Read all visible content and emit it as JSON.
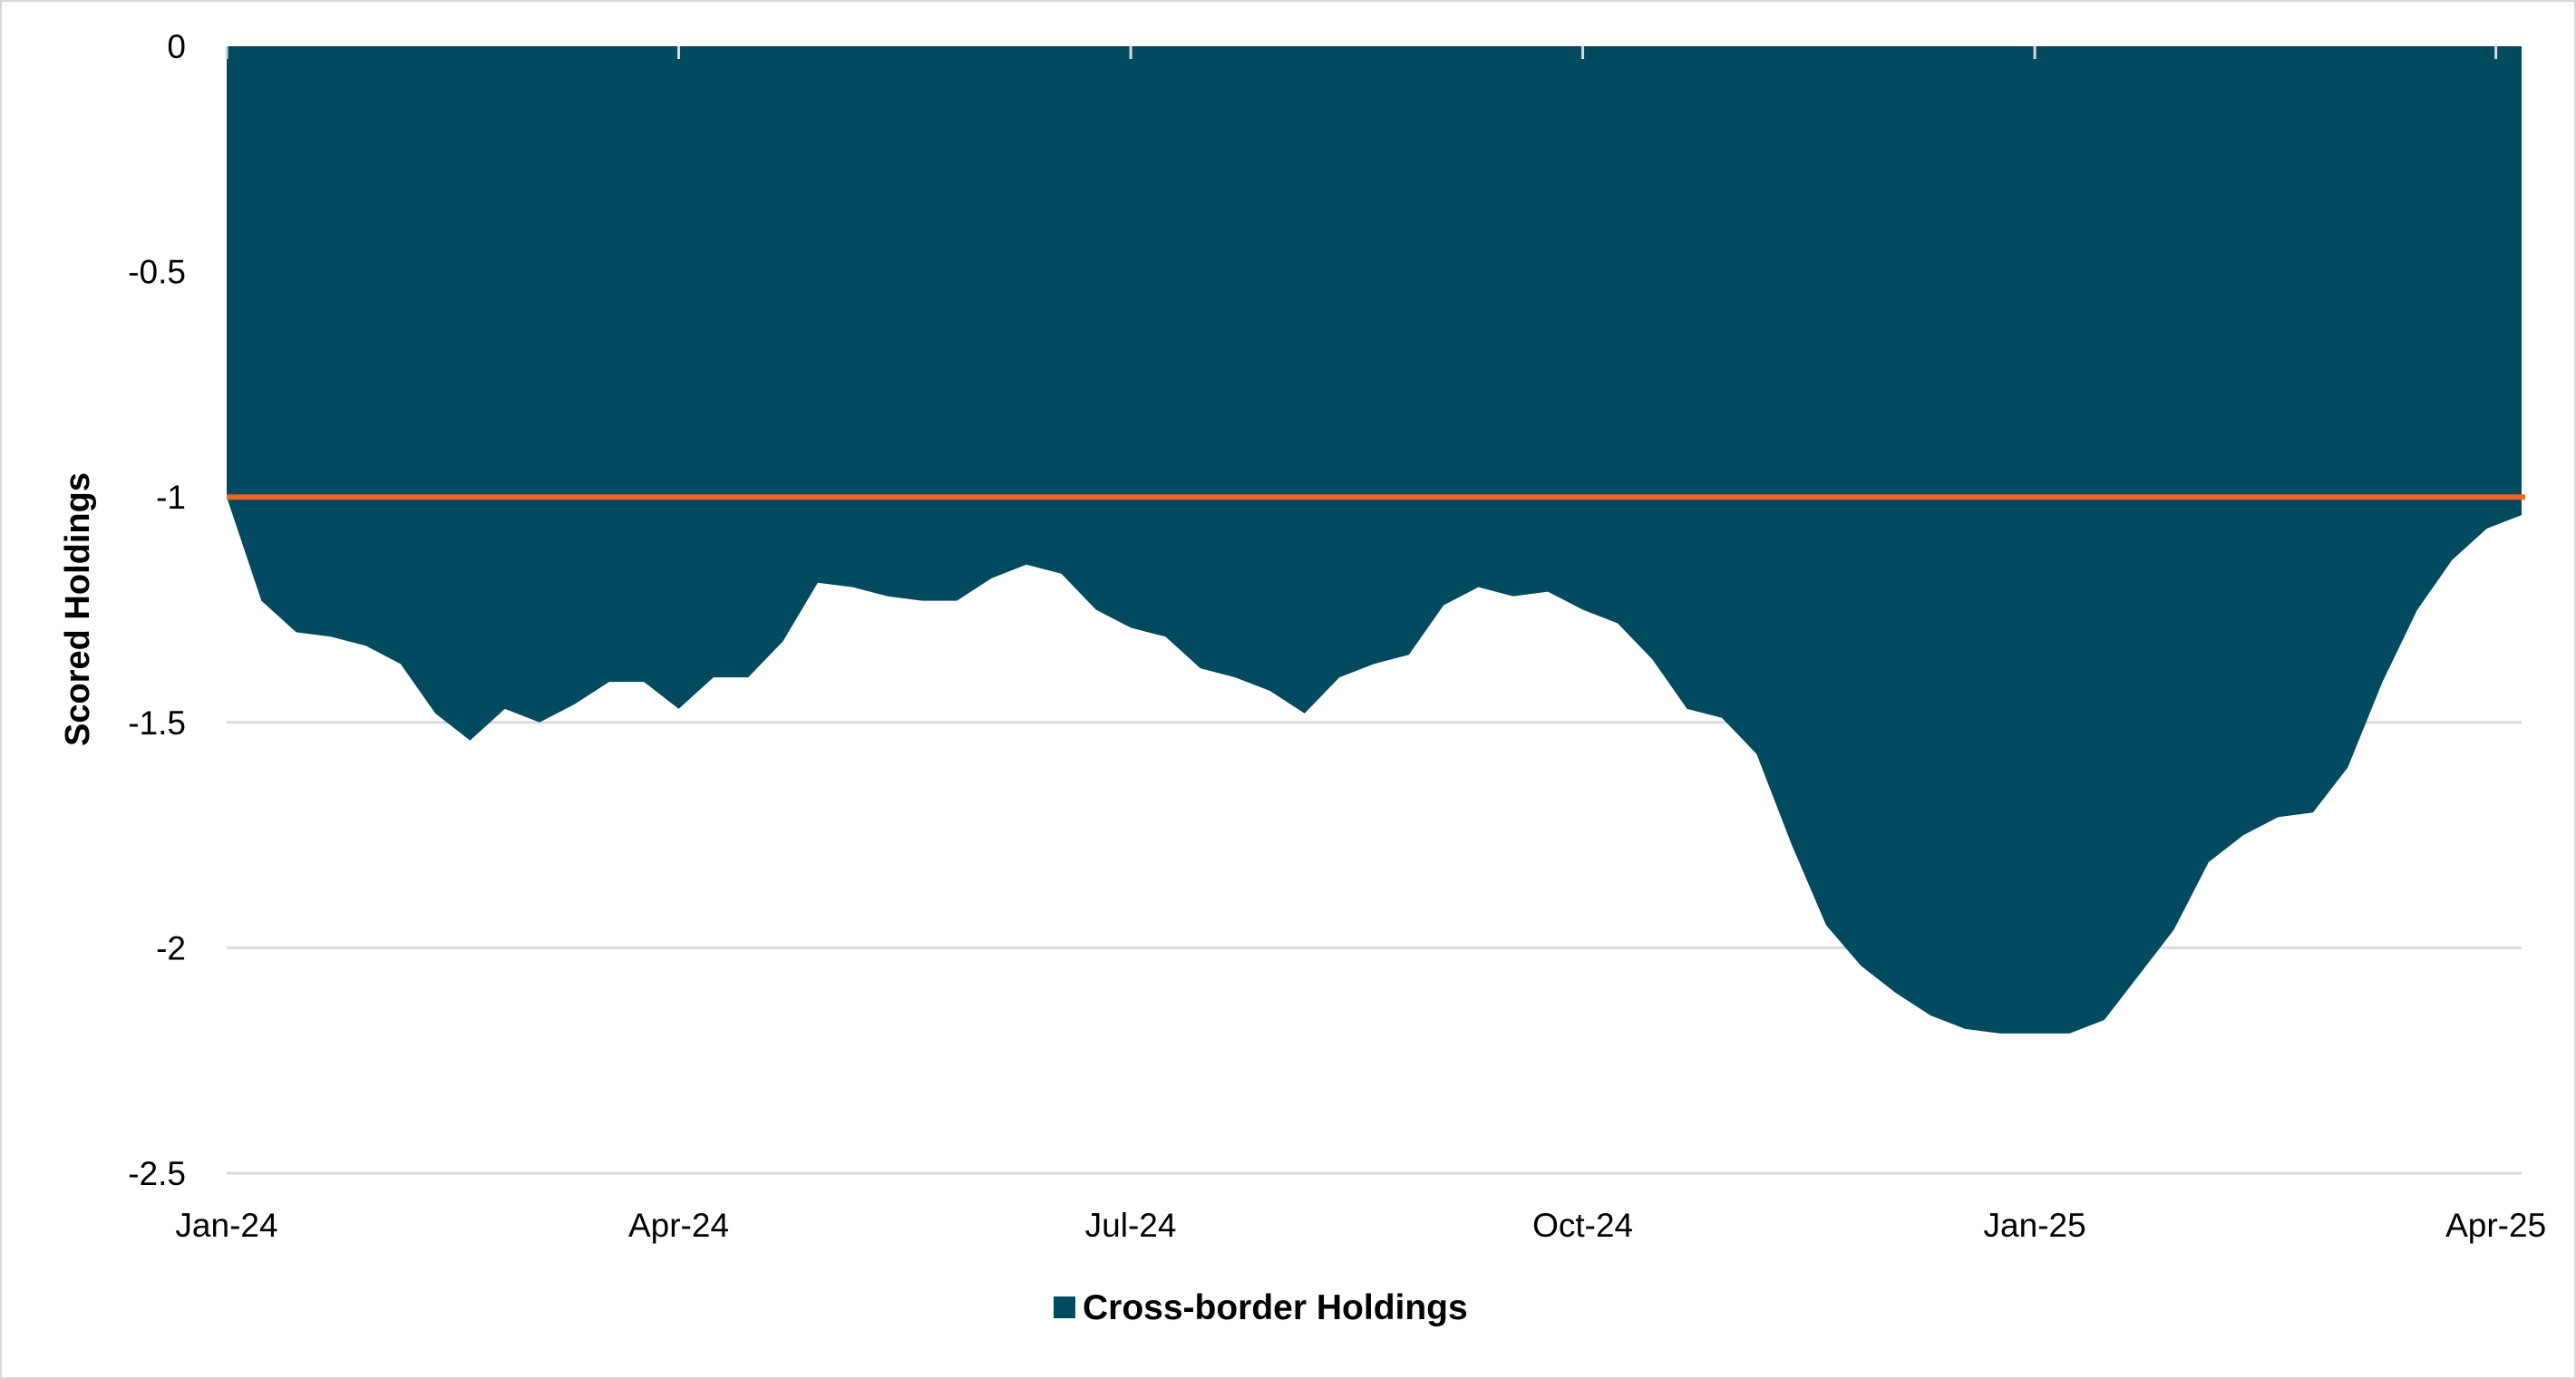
{
  "chart_data": {
    "type": "area",
    "title": "",
    "xlabel": "",
    "ylabel": "Scored Holdings",
    "ylim": [
      -2.5,
      0
    ],
    "yticks": [
      "0",
      "-0.5",
      "-1",
      "-1.5",
      "-2",
      "-2.5"
    ],
    "ytick_values": [
      0,
      -0.5,
      -1,
      -1.5,
      -2,
      -2.5
    ],
    "xticks": [
      "Jan-24",
      "Apr-24",
      "Jul-24",
      "Oct-24",
      "Jan-25",
      "Apr-25"
    ],
    "xtick_positions_weeks": [
      0,
      13,
      26,
      39,
      52,
      65
    ],
    "grid": true,
    "legend_position": "bottom",
    "series": [
      {
        "name": "Cross-border Holdings",
        "color": "#024A5F",
        "values": [
          -1.0,
          -1.23,
          -1.3,
          -1.31,
          -1.33,
          -1.37,
          -1.48,
          -1.54,
          -1.47,
          -1.5,
          -1.46,
          -1.41,
          -1.41,
          -1.47,
          -1.4,
          -1.4,
          -1.32,
          -1.19,
          -1.2,
          -1.22,
          -1.23,
          -1.23,
          -1.18,
          -1.15,
          -1.17,
          -1.25,
          -1.29,
          -1.31,
          -1.38,
          -1.4,
          -1.43,
          -1.48,
          -1.4,
          -1.37,
          -1.35,
          -1.24,
          -1.2,
          -1.22,
          -1.21,
          -1.25,
          -1.28,
          -1.36,
          -1.47,
          -1.49,
          -1.57,
          -1.77,
          -1.95,
          -2.04,
          -2.1,
          -2.15,
          -2.18,
          -2.19,
          -2.19,
          -2.19,
          -2.16,
          -2.06,
          -1.96,
          -1.81,
          -1.75,
          -1.71,
          -1.7,
          -1.6,
          -1.41,
          -1.25,
          -1.14,
          -1.07,
          -1.04
        ]
      }
    ],
    "reference_line": {
      "value": -1,
      "color": "#F26522"
    }
  }
}
